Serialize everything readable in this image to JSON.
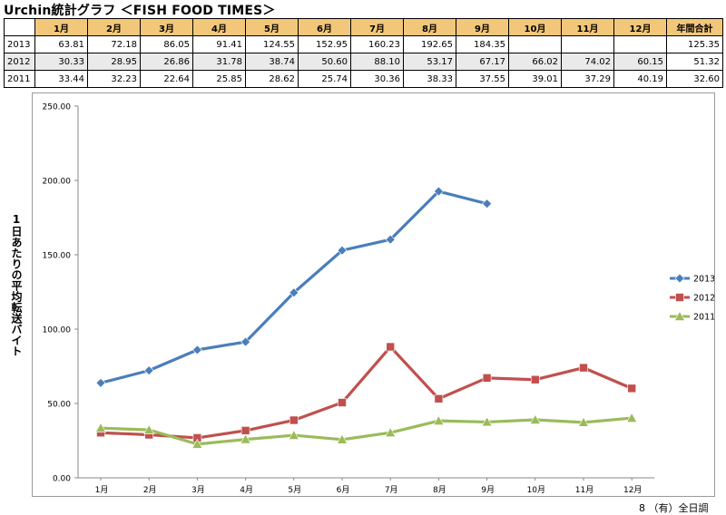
{
  "page": {
    "title": "Urchin統計グラフ ＜FISH FOOD TIMES＞",
    "footer": "8 （有）全日調"
  },
  "table": {
    "headers": [
      "1月",
      "2月",
      "3月",
      "4月",
      "5月",
      "6月",
      "7月",
      "8月",
      "9月",
      "10月",
      "11月",
      "12月",
      "年間合計"
    ],
    "rows": [
      {
        "year": "2013",
        "values": [
          "63.81",
          "72.18",
          "86.05",
          "91.41",
          "124.55",
          "152.95",
          "160.23",
          "192.65",
          "184.35",
          "",
          "",
          ""
        ],
        "total": "125.35"
      },
      {
        "year": "2012",
        "values": [
          "30.33",
          "28.95",
          "26.86",
          "31.78",
          "38.74",
          "50.60",
          "88.10",
          "53.17",
          "67.17",
          "66.02",
          "74.02",
          "60.15"
        ],
        "total": "51.32"
      },
      {
        "year": "2011",
        "values": [
          "33.44",
          "32.23",
          "22.64",
          "25.85",
          "28.62",
          "25.74",
          "30.36",
          "38.33",
          "37.55",
          "39.01",
          "37.29",
          "40.19"
        ],
        "total": "32.60"
      }
    ]
  },
  "chart_data": {
    "type": "line",
    "ylabel": "1日あたりの平均転送バイト",
    "categories": [
      "1月",
      "2月",
      "3月",
      "4月",
      "5月",
      "6月",
      "7月",
      "8月",
      "9月",
      "10月",
      "11月",
      "12月"
    ],
    "ylim": [
      0,
      250
    ],
    "yticks": [
      "0.00",
      "50.00",
      "100.00",
      "150.00",
      "200.00",
      "250.00"
    ],
    "grid": false,
    "legend_position": "right",
    "series": [
      {
        "name": "2013",
        "color": "#4a7ebb",
        "marker": "diamond",
        "values": [
          63.81,
          72.18,
          86.05,
          91.41,
          124.55,
          152.95,
          160.23,
          192.65,
          184.35,
          null,
          null,
          null
        ]
      },
      {
        "name": "2012",
        "color": "#c0504d",
        "marker": "square",
        "values": [
          30.33,
          28.95,
          26.86,
          31.78,
          38.74,
          50.6,
          88.1,
          53.17,
          67.17,
          66.02,
          74.02,
          60.15
        ]
      },
      {
        "name": "2011",
        "color": "#9bbb59",
        "marker": "triangle",
        "values": [
          33.44,
          32.23,
          22.64,
          25.85,
          28.62,
          25.74,
          30.36,
          38.33,
          37.55,
          39.01,
          37.29,
          40.19
        ]
      }
    ]
  }
}
